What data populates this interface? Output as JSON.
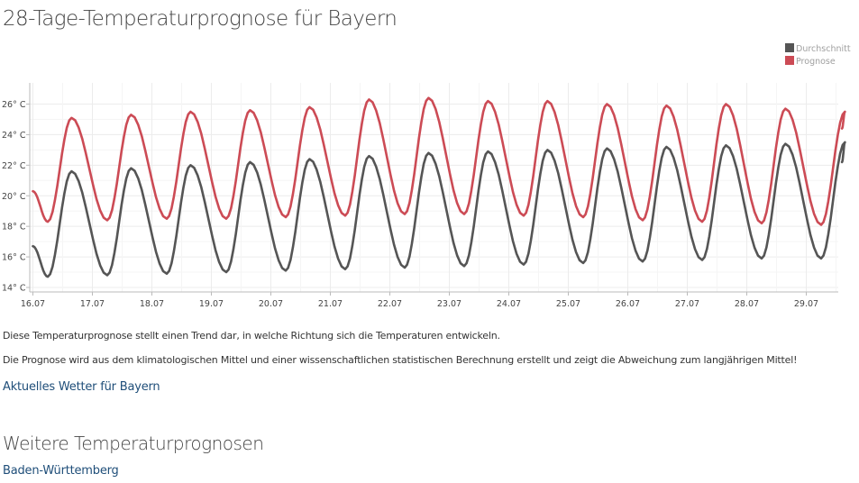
{
  "page": {
    "title": "28-Tage-Temperaturprognose für Bayern",
    "note_1": "Diese Temperaturprognose stellt einen Trend dar, in welche Richtung sich die Temperaturen entwickeln.",
    "note_2": "Die Prognose wird aus dem klimatologischen Mittel und einer wissenschaftlichen statistischen Berechnung erstellt und zeigt die Abweichung zum langjährigen Mittel!",
    "link_current": "Aktuelles Wetter für Bayern",
    "section_title": "Weitere Temperaturprognosen",
    "link_region": "Baden-Württemberg"
  },
  "chart_data": {
    "type": "line",
    "categories": [
      "16.07",
      "17.07",
      "18.07",
      "19.07",
      "20.07",
      "21.07",
      "22.07",
      "23.07",
      "24.07",
      "25.07",
      "26.07",
      "27.07",
      "28.07",
      "29.07"
    ],
    "x_start": 0,
    "x_end": 13.6,
    "ylim": [
      14,
      27
    ],
    "yticks": [
      14,
      16,
      18,
      20,
      22,
      24,
      26
    ],
    "ytick_format": "{v}° C",
    "grid": true,
    "legend_position": "top-right",
    "series": [
      {
        "name": "Durchschnitt",
        "color": "#555555",
        "start": 16.7,
        "daily": [
          [
            14.7,
            21.6
          ],
          [
            14.8,
            21.8
          ],
          [
            14.9,
            22.0
          ],
          [
            15.0,
            22.2
          ],
          [
            15.1,
            22.4
          ],
          [
            15.2,
            22.6
          ],
          [
            15.3,
            22.8
          ],
          [
            15.4,
            22.9
          ],
          [
            15.5,
            23.0
          ],
          [
            15.6,
            23.1
          ],
          [
            15.7,
            23.2
          ],
          [
            15.8,
            23.3
          ],
          [
            15.9,
            23.4
          ],
          [
            15.9,
            23.5
          ]
        ],
        "end": 22.2
      },
      {
        "name": "Prognose",
        "color": "#cc4b55",
        "start": 20.3,
        "daily": [
          [
            18.3,
            25.1
          ],
          [
            18.4,
            25.3
          ],
          [
            18.5,
            25.5
          ],
          [
            18.5,
            25.6
          ],
          [
            18.6,
            25.8
          ],
          [
            18.7,
            26.3
          ],
          [
            18.8,
            26.4
          ],
          [
            18.8,
            26.2
          ],
          [
            18.7,
            26.2
          ],
          [
            18.6,
            26.0
          ],
          [
            18.4,
            25.9
          ],
          [
            18.3,
            26.0
          ],
          [
            18.2,
            25.7
          ],
          [
            18.1,
            25.5
          ]
        ],
        "end": 24.4
      }
    ]
  }
}
